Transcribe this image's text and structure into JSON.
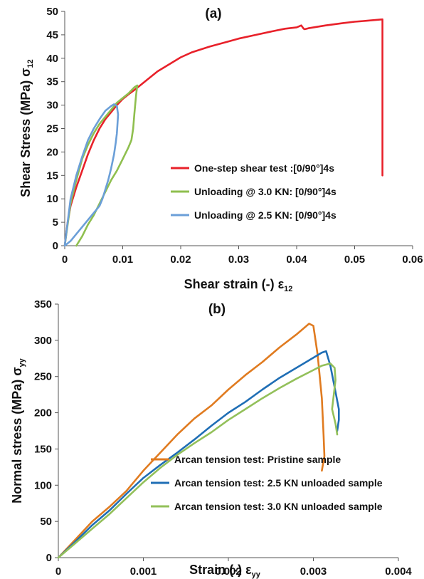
{
  "chart_data": [
    {
      "type": "line",
      "title": "(a)",
      "xlabel": "Shear strain (-) ε",
      "xlabel_sub": "12",
      "ylabel": "Shear Stress (MPa) σ",
      "ylabel_sub": "12",
      "xlim": [
        0,
        0.06
      ],
      "ylim": [
        0,
        50
      ],
      "xticks": [
        "0",
        "0.01",
        "0.02",
        "0.03",
        "0.04",
        "0.05",
        "0.06"
      ],
      "xtick_values": [
        0,
        0.01,
        0.02,
        0.03,
        0.04,
        0.05,
        0.06
      ],
      "yticks": [
        "0",
        "5",
        "10",
        "15",
        "20",
        "25",
        "30",
        "35",
        "40",
        "45",
        "50"
      ],
      "ytick_values": [
        0,
        5,
        10,
        15,
        20,
        25,
        30,
        35,
        40,
        45,
        50
      ],
      "grid": false,
      "legend_position": "center-right",
      "series": [
        {
          "name": "One-step shear test :[0/90°]4s",
          "color": "#e8212a",
          "x": [
            0,
            0.0005,
            0.001,
            0.002,
            0.003,
            0.004,
            0.005,
            0.006,
            0.007,
            0.008,
            0.009,
            0.01,
            0.011,
            0.012,
            0.013,
            0.014,
            0.016,
            0.018,
            0.02,
            0.022,
            0.025,
            0.028,
            0.03,
            0.033,
            0.036,
            0.038,
            0.04,
            0.0408,
            0.0412,
            0.0414,
            0.042,
            0.045,
            0.048,
            0.05,
            0.052,
            0.0548,
            0.0548,
            0.0548
          ],
          "y": [
            0,
            5,
            8.5,
            12.5,
            16,
            19.5,
            22.5,
            25,
            27,
            28.5,
            30,
            31.3,
            32.3,
            33.2,
            34.2,
            35.2,
            37.2,
            38.7,
            40.2,
            41.3,
            42.5,
            43.5,
            44.2,
            45,
            45.8,
            46.3,
            46.6,
            47,
            46.3,
            46.2,
            46.4,
            47,
            47.5,
            47.8,
            48,
            48.3,
            30,
            15
          ]
        },
        {
          "name": "Unloading @ 3.0 KN: [0/90°]4s",
          "color": "#8fbf4f",
          "x": [
            0,
            0.001,
            0.002,
            0.003,
            0.004,
            0.005,
            0.006,
            0.007,
            0.008,
            0.009,
            0.01,
            0.011,
            0.012,
            0.0125,
            0.0123,
            0.012,
            0.0118,
            0.0115,
            0.011,
            0.01,
            0.009,
            0.008,
            0.007,
            0.006,
            0.005,
            0.004,
            0.003,
            0.002
          ],
          "y": [
            0,
            9,
            14,
            18.5,
            21.5,
            24,
            26,
            27.5,
            29,
            30.5,
            31.5,
            32.5,
            33.8,
            34.2,
            32,
            28,
            25,
            22.5,
            21,
            18.5,
            16,
            14,
            11.5,
            9,
            6.5,
            4.5,
            2,
            0
          ]
        },
        {
          "name": "Unloading @ 2.5 KN: [0/90°]4s",
          "color": "#6b9fd8",
          "x": [
            0,
            0.001,
            0.002,
            0.003,
            0.004,
            0.005,
            0.006,
            0.007,
            0.008,
            0.0085,
            0.009,
            0.0092,
            0.009,
            0.0088,
            0.0085,
            0.008,
            0.0075,
            0.007,
            0.0065,
            0.006,
            0.005,
            0.004,
            0.003,
            0.002,
            0.001,
            0
          ],
          "y": [
            0,
            10,
            15,
            19,
            22.5,
            25,
            27,
            28.8,
            29.8,
            30.2,
            29.8,
            28,
            24,
            22,
            19.5,
            16.5,
            14,
            12,
            10,
            8.5,
            7,
            5.5,
            4,
            2.5,
            1,
            0
          ]
        }
      ]
    },
    {
      "type": "line",
      "title": "(b)",
      "xlabel": "Strain (-) ε",
      "xlabel_sub": "yy",
      "ylabel": "Normal stress (MPa) σ",
      "ylabel_sub": "yy",
      "xlim": [
        0,
        0.004
      ],
      "ylim": [
        0,
        350
      ],
      "xticks": [
        "0",
        "0.001",
        "0.002",
        "0.003",
        "0.004"
      ],
      "xtick_values": [
        0,
        0.001,
        0.002,
        0.003,
        0.004
      ],
      "yticks": [
        "0",
        "50",
        "100",
        "150",
        "200",
        "250",
        "300",
        "350"
      ],
      "ytick_values": [
        0,
        50,
        100,
        150,
        200,
        250,
        300,
        350
      ],
      "grid": false,
      "legend_position": "bottom-right",
      "series": [
        {
          "name": "Arcan tension test: Pristine sample",
          "color": "#e07b20",
          "x": [
            0,
            0.0002,
            0.0004,
            0.0006,
            0.0008,
            0.001,
            0.0012,
            0.0014,
            0.0016,
            0.0018,
            0.002,
            0.0022,
            0.0024,
            0.0026,
            0.0028,
            0.0029,
            0.00295,
            0.003,
            0.00305,
            0.0031,
            0.00312,
            0.00313,
            0.0031
          ],
          "y": [
            0,
            25,
            50,
            70,
            92,
            120,
            145,
            170,
            192,
            210,
            232,
            252,
            270,
            290,
            308,
            318,
            323,
            320,
            280,
            220,
            170,
            140,
            120
          ]
        },
        {
          "name": "Arcan tension test: 2.5 KN unloaded sample",
          "color": "#1f6eb5",
          "x": [
            0,
            0.0002,
            0.0004,
            0.0006,
            0.0008,
            0.001,
            0.0012,
            0.0014,
            0.0016,
            0.0018,
            0.002,
            0.0022,
            0.0024,
            0.0026,
            0.0028,
            0.003,
            0.0031,
            0.00315,
            0.0032,
            0.00325,
            0.0033,
            0.0033,
            0.00328
          ],
          "y": [
            0,
            22,
            45,
            65,
            88,
            110,
            128,
            145,
            163,
            182,
            200,
            215,
            232,
            248,
            262,
            276,
            283,
            285,
            265,
            235,
            205,
            190,
            175
          ]
        },
        {
          "name": "Arcan tension test: 3.0 KN unloaded sample",
          "color": "#93c05a",
          "x": [
            0,
            0.0002,
            0.0004,
            0.0006,
            0.0008,
            0.001,
            0.0012,
            0.0014,
            0.0016,
            0.0018,
            0.002,
            0.0022,
            0.0024,
            0.0026,
            0.0028,
            0.003,
            0.0031,
            0.0032,
            0.00325,
            0.00326,
            0.00324,
            0.00322,
            0.00326,
            0.00328
          ],
          "y": [
            0,
            20,
            40,
            60,
            82,
            104,
            124,
            142,
            158,
            173,
            190,
            205,
            220,
            234,
            247,
            259,
            265,
            268,
            262,
            245,
            225,
            205,
            185,
            170
          ]
        }
      ]
    }
  ]
}
